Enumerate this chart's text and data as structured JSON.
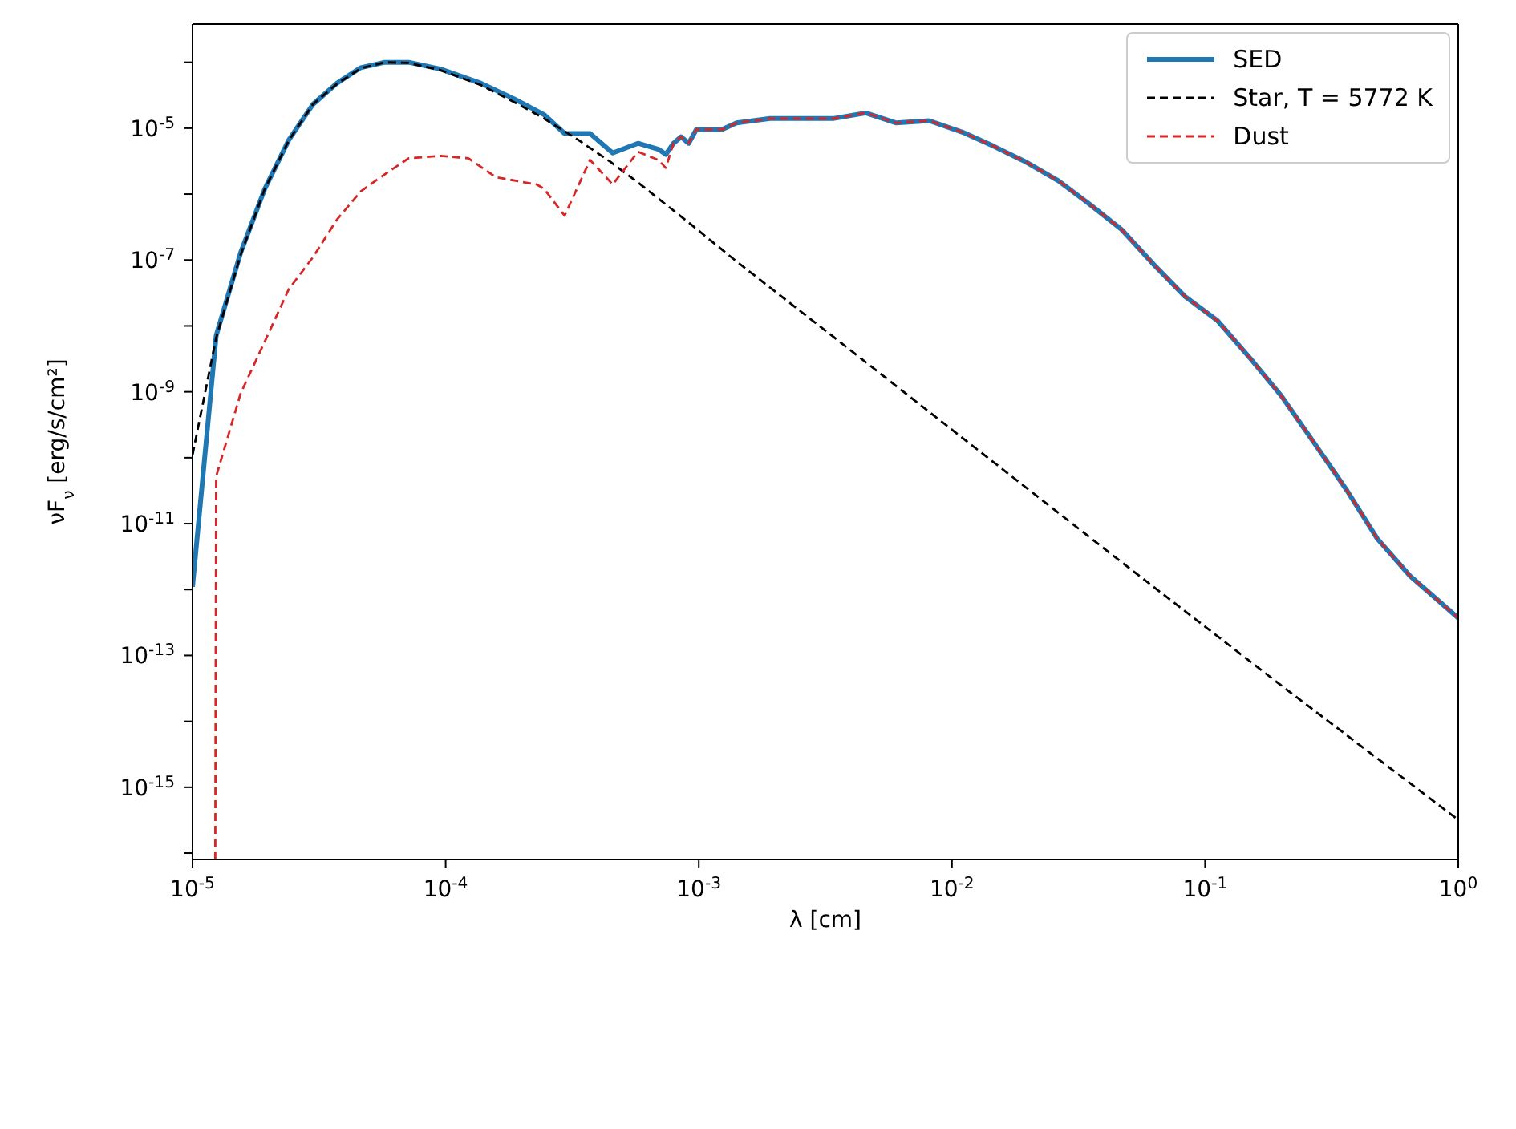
{
  "chart_data": {
    "type": "line",
    "xlabel": "λ [cm]",
    "ylabel": "νF$_{ν}$ [erg/s/cm²]",
    "log": "xy",
    "legend": "top right",
    "xlim": [
      1e-05,
      1
    ],
    "ylim": [
      8e-17,
      0.00038
    ],
    "xticks": [
      {
        "value": 1e-05,
        "label": "10$^{-5}$"
      },
      {
        "value": 0.0001,
        "label": "10$^{-4}$"
      },
      {
        "value": 0.001,
        "label": "10$^{-3}$"
      },
      {
        "value": 0.01,
        "label": "10$^{-2}$"
      },
      {
        "value": 0.1,
        "label": "10$^{-1}$"
      },
      {
        "value": 1,
        "label": "10$^{0}$"
      }
    ],
    "yticks": [
      {
        "value": 1e-16,
        "label": null
      },
      {
        "value": 1e-15,
        "label": "10$^{-15}$"
      },
      {
        "value": 1e-14,
        "label": null
      },
      {
        "value": 1e-13,
        "label": "10$^{-13}$"
      },
      {
        "value": 1e-12,
        "label": null
      },
      {
        "value": 1e-11,
        "label": "10$^{-11}$"
      },
      {
        "value": 1e-10,
        "label": null
      },
      {
        "value": 1e-09,
        "label": "10$^{-9}$"
      },
      {
        "value": 1e-08,
        "label": null
      },
      {
        "value": 1e-07,
        "label": "10$^{-7}$"
      },
      {
        "value": 1e-06,
        "label": null
      },
      {
        "value": 1e-05,
        "label": "10$^{-5}$"
      },
      {
        "value": 0.0001,
        "label": null
      }
    ],
    "series": [
      {
        "name": "SED",
        "color": "#1f77b4",
        "line_style": "solid",
        "x": [
          1e-05,
          1.24e-05,
          1.55e-05,
          1.93e-05,
          2.4e-05,
          2.99e-05,
          3.72e-05,
          4.62e-05,
          5.75e-05,
          7.14e-05,
          9.55e-05,
          0.000138,
          0.000186,
          0.000245,
          0.000295,
          0.000372,
          0.000457,
          0.000575,
          0.000692,
          0.000741,
          0.000794,
          0.000851,
          0.000912,
          0.000977,
          0.00123,
          0.00141,
          0.00191,
          0.00257,
          0.00339,
          0.00457,
          0.00603,
          0.00813,
          0.011,
          0.0145,
          0.0195,
          0.0263,
          0.0347,
          0.0468,
          0.0631,
          0.0832,
          0.112,
          0.151,
          0.2,
          0.269,
          0.363,
          0.479,
          0.646,
          1
        ],
        "values": [
          1.1e-12,
          7.1e-09,
          1.3e-07,
          1.2e-06,
          6.6e-06,
          2.3e-05,
          4.8e-05,
          8.3e-05,
          0.0001,
          0.0001,
          7.9e-05,
          4.8e-05,
          2.8e-05,
          1.6e-05,
          8.3e-06,
          8.3e-06,
          4.2e-06,
          5.9e-06,
          4.8e-06,
          4e-06,
          5.9e-06,
          7.4e-06,
          5.9e-06,
          9.5e-06,
          9.5e-06,
          1.2e-05,
          1.4e-05,
          1.4e-05,
          1.4e-05,
          1.7e-05,
          1.2e-05,
          1.3e-05,
          8.7e-06,
          5.4e-06,
          3.1e-06,
          1.6e-06,
          7.2e-07,
          2.9e-07,
          8.3e-08,
          2.8e-08,
          1.2e-08,
          3.2e-09,
          8.7e-10,
          1.7e-10,
          3.2e-11,
          5.9e-12,
          1.6e-12,
          3.7e-13
        ]
      },
      {
        "name": "Star, T = 5772 K",
        "color": "#000000",
        "line_style": "dashed",
        "x": [
          1e-05,
          1.24e-05,
          1.55e-05,
          1.93e-05,
          2.4e-05,
          2.99e-05,
          3.72e-05,
          4.62e-05,
          5.75e-05,
          7.14e-05,
          9.55e-05,
          0.000138,
          0.000186,
          0.000245,
          0.000331,
          0.000447,
          0.000589,
          0.000912,
          0.00141,
          0.00339,
          0.011,
          0.0468,
          0.2,
          1
        ],
        "values": [
          1.1e-10,
          6.6e-09,
          1.2e-07,
          1.2e-06,
          6.5e-06,
          2.3e-05,
          4.7e-05,
          8.1e-05,
          0.0001,
          9.8e-05,
          7.6e-05,
          4.5e-05,
          2.5e-05,
          1.4e-05,
          6.8e-06,
          3.1e-06,
          1.4e-06,
          3.7e-07,
          9.5e-08,
          6.9e-09,
          2e-10,
          2.6e-12,
          3.5e-14,
          3.2e-16
        ]
      },
      {
        "name": "Dust",
        "color": "#d62728",
        "line_style": "dashed",
        "x": [
          1.23e-05,
          1.24e-05,
          1.55e-05,
          1.93e-05,
          2.4e-05,
          2.99e-05,
          3.72e-05,
          4.62e-05,
          5.75e-05,
          7.14e-05,
          9.55e-05,
          0.000123,
          0.000158,
          0.000229,
          0.000245,
          0.000295,
          0.000372,
          0.000457,
          0.000575,
          0.000692,
          0.000741,
          0.000794,
          0.000851,
          0.000912,
          0.000977,
          0.00123,
          0.00141,
          0.00191,
          0.00257,
          0.00339,
          0.00457,
          0.00603,
          0.00813,
          0.011,
          0.0145,
          0.0195,
          0.0263,
          0.0347,
          0.0468,
          0.0631,
          0.0832,
          0.112,
          0.151,
          0.2,
          0.269,
          0.363,
          0.479,
          0.646,
          1
        ],
        "values": [
          8e-17,
          5.2e-11,
          9.5e-10,
          5.8e-09,
          3.6e-08,
          1.1e-07,
          4.1e-07,
          1.1e-06,
          2e-06,
          3.5e-06,
          3.8e-06,
          3.5e-06,
          1.8e-06,
          1.4e-06,
          1.2e-06,
          4.7e-07,
          3.3e-06,
          1.4e-06,
          4.4e-06,
          3.3e-06,
          2.5e-06,
          5.9e-06,
          7.4e-06,
          5.9e-06,
          9.5e-06,
          9.5e-06,
          1.2e-05,
          1.4e-05,
          1.4e-05,
          1.4e-05,
          1.7e-05,
          1.2e-05,
          1.3e-05,
          8.7e-06,
          5.4e-06,
          3.1e-06,
          1.6e-06,
          7.2e-07,
          2.9e-07,
          8.3e-08,
          2.8e-08,
          1.2e-08,
          3.2e-09,
          8.7e-10,
          1.7e-10,
          3.2e-11,
          5.9e-12,
          1.6e-12,
          3.7e-13
        ]
      }
    ]
  }
}
